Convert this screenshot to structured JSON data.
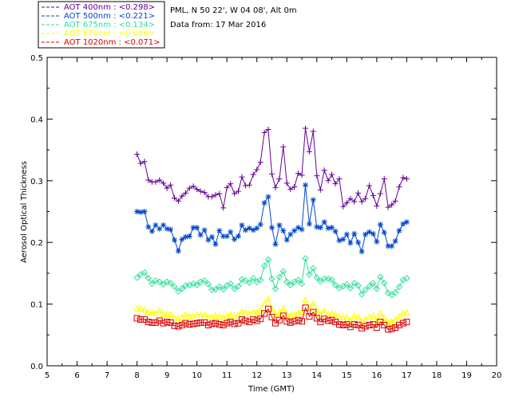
{
  "chart_data": {
    "type": "line",
    "site": "PML, N 50 22', W 04 08', Alt 0m",
    "date_text": "Data from: 17 Mar 2016",
    "xlabel": "Time (GMT)",
    "ylabel": "Aerosol Optical Thickness",
    "xlim": [
      5,
      20
    ],
    "ylim": [
      0,
      0.5
    ],
    "xticks": [
      "5",
      "6",
      "7",
      "8",
      "9",
      "10",
      "11",
      "12",
      "13",
      "14",
      "15",
      "16",
      "17",
      "18",
      "19",
      "20"
    ],
    "yticks": [
      "0.0",
      "0.1",
      "0.2",
      "0.3",
      "0.4",
      "0.5"
    ],
    "grid": false,
    "legend_position": "top-left, outside plot",
    "x": [
      8.0,
      8.12,
      8.25,
      8.38,
      8.5,
      8.62,
      8.75,
      8.88,
      9.0,
      9.12,
      9.25,
      9.38,
      9.5,
      9.62,
      9.75,
      9.88,
      10.0,
      10.12,
      10.25,
      10.38,
      10.5,
      10.62,
      10.75,
      10.88,
      11.0,
      11.12,
      11.25,
      11.38,
      11.5,
      11.62,
      11.75,
      11.88,
      12.0,
      12.12,
      12.25,
      12.38,
      12.5,
      12.62,
      12.75,
      12.88,
      13.0,
      13.12,
      13.25,
      13.38,
      13.5,
      13.62,
      13.75,
      13.88,
      14.0,
      14.12,
      14.25,
      14.38,
      14.5,
      14.62,
      14.75,
      14.88,
      15.0,
      15.12,
      15.25,
      15.38,
      15.5,
      15.62,
      15.75,
      15.88,
      16.0,
      16.12,
      16.25,
      16.38,
      16.5,
      16.62,
      16.75,
      16.88,
      17.0
    ],
    "series": [
      {
        "name": "AOT  400nm",
        "mean_label": "<0.298>",
        "color": "#660099",
        "marker": "plus",
        "values": [
          0.343,
          0.328,
          0.331,
          0.301,
          0.298,
          0.298,
          0.301,
          0.296,
          0.288,
          0.293,
          0.272,
          0.267,
          0.275,
          0.28,
          0.288,
          0.291,
          0.286,
          0.283,
          0.281,
          0.274,
          0.274,
          0.277,
          0.279,
          0.256,
          0.289,
          0.295,
          0.279,
          0.283,
          0.306,
          0.292,
          0.293,
          0.31,
          0.318,
          0.33,
          0.378,
          0.383,
          0.311,
          0.289,
          0.303,
          0.355,
          0.296,
          0.286,
          0.29,
          0.312,
          0.309,
          0.385,
          0.347,
          0.38,
          0.308,
          0.285,
          0.317,
          0.3,
          0.31,
          0.295,
          0.303,
          0.258,
          0.264,
          0.271,
          0.266,
          0.28,
          0.266,
          0.271,
          0.292,
          0.276,
          0.259,
          0.279,
          0.303,
          0.257,
          0.261,
          0.267,
          0.29,
          0.305,
          0.303
        ]
      },
      {
        "name": "AOT  500nm",
        "mean_label": "<0.221>",
        "color": "#0047cc",
        "marker": "asterisk",
        "values": [
          0.25,
          0.249,
          0.25,
          0.225,
          0.218,
          0.228,
          0.222,
          0.228,
          0.222,
          0.221,
          0.204,
          0.186,
          0.205,
          0.209,
          0.21,
          0.224,
          0.224,
          0.212,
          0.22,
          0.204,
          0.209,
          0.197,
          0.219,
          0.21,
          0.21,
          0.217,
          0.205,
          0.21,
          0.228,
          0.22,
          0.223,
          0.22,
          0.223,
          0.229,
          0.264,
          0.274,
          0.224,
          0.197,
          0.228,
          0.219,
          0.204,
          0.213,
          0.219,
          0.224,
          0.221,
          0.293,
          0.23,
          0.269,
          0.225,
          0.224,
          0.233,
          0.223,
          0.224,
          0.218,
          0.203,
          0.205,
          0.213,
          0.199,
          0.214,
          0.2,
          0.185,
          0.213,
          0.217,
          0.214,
          0.201,
          0.229,
          0.216,
          0.194,
          0.194,
          0.202,
          0.219,
          0.23,
          0.233
        ]
      },
      {
        "name": "AOT  675nm",
        "mean_label": "<0.134>",
        "color": "#33dd99",
        "marker": "diamond",
        "values": [
          0.143,
          0.148,
          0.151,
          0.142,
          0.133,
          0.138,
          0.136,
          0.132,
          0.136,
          0.134,
          0.128,
          0.121,
          0.125,
          0.13,
          0.131,
          0.133,
          0.131,
          0.136,
          0.138,
          0.132,
          0.123,
          0.124,
          0.128,
          0.124,
          0.13,
          0.133,
          0.125,
          0.129,
          0.14,
          0.138,
          0.135,
          0.142,
          0.136,
          0.139,
          0.162,
          0.172,
          0.141,
          0.125,
          0.144,
          0.153,
          0.136,
          0.131,
          0.136,
          0.139,
          0.133,
          0.174,
          0.148,
          0.158,
          0.143,
          0.137,
          0.141,
          0.141,
          0.139,
          0.131,
          0.126,
          0.129,
          0.132,
          0.126,
          0.134,
          0.13,
          0.116,
          0.123,
          0.129,
          0.134,
          0.125,
          0.144,
          0.134,
          0.118,
          0.115,
          0.119,
          0.128,
          0.139,
          0.142
        ]
      },
      {
        "name": "AOT  870nm",
        "mean_label": "<0.086>",
        "color": "#ffff00",
        "marker": "triangle",
        "values": [
          0.093,
          0.092,
          0.091,
          0.087,
          0.086,
          0.085,
          0.089,
          0.083,
          0.084,
          0.083,
          0.078,
          0.077,
          0.078,
          0.083,
          0.08,
          0.081,
          0.082,
          0.082,
          0.083,
          0.079,
          0.079,
          0.081,
          0.08,
          0.078,
          0.081,
          0.083,
          0.081,
          0.082,
          0.088,
          0.086,
          0.085,
          0.088,
          0.087,
          0.09,
          0.101,
          0.108,
          0.093,
          0.083,
          0.087,
          0.093,
          0.084,
          0.081,
          0.083,
          0.086,
          0.087,
          0.107,
          0.093,
          0.101,
          0.09,
          0.082,
          0.089,
          0.084,
          0.085,
          0.083,
          0.079,
          0.078,
          0.079,
          0.074,
          0.08,
          0.079,
          0.072,
          0.075,
          0.079,
          0.081,
          0.073,
          0.085,
          0.077,
          0.07,
          0.072,
          0.074,
          0.08,
          0.085,
          0.086
        ]
      },
      {
        "name": "AOT 1020nm",
        "mean_label": "<0.071>",
        "color": "#dd0000",
        "marker": "square",
        "values": [
          0.077,
          0.075,
          0.075,
          0.071,
          0.07,
          0.07,
          0.073,
          0.069,
          0.071,
          0.07,
          0.065,
          0.064,
          0.066,
          0.069,
          0.067,
          0.068,
          0.069,
          0.07,
          0.07,
          0.066,
          0.068,
          0.069,
          0.067,
          0.066,
          0.069,
          0.071,
          0.068,
          0.069,
          0.075,
          0.073,
          0.071,
          0.075,
          0.073,
          0.076,
          0.085,
          0.092,
          0.079,
          0.069,
          0.074,
          0.081,
          0.072,
          0.07,
          0.072,
          0.074,
          0.072,
          0.094,
          0.08,
          0.087,
          0.077,
          0.071,
          0.076,
          0.073,
          0.074,
          0.071,
          0.067,
          0.066,
          0.067,
          0.063,
          0.067,
          0.066,
          0.061,
          0.064,
          0.066,
          0.067,
          0.062,
          0.071,
          0.066,
          0.059,
          0.06,
          0.062,
          0.066,
          0.069,
          0.071
        ]
      }
    ]
  }
}
